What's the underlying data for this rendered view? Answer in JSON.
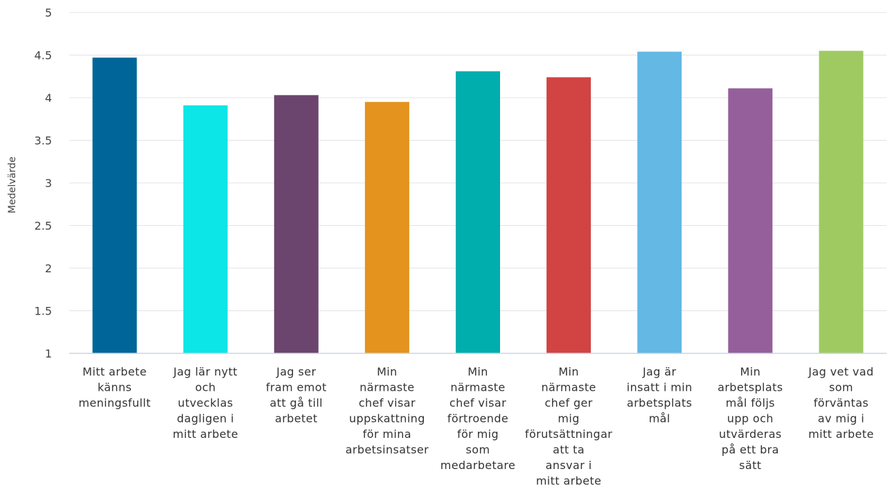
{
  "chart_data": {
    "type": "bar",
    "ylabel": "Medelvärde",
    "xlabel": "",
    "ylim": [
      1,
      5
    ],
    "yticks": [
      "1",
      "1.5",
      "2",
      "2.5",
      "3",
      "3.5",
      "4",
      "4.5",
      "5"
    ],
    "grid": true,
    "categories": [
      [
        "Mitt arbete",
        "känns",
        "meningsfullt"
      ],
      [
        "Jag lär nytt",
        "och",
        "utvecklas",
        "dagligen i",
        "mitt arbete"
      ],
      [
        "Jag ser",
        "fram emot",
        "att gå till",
        "arbetet"
      ],
      [
        "Min",
        "närmaste",
        "chef visar",
        "uppskattning",
        "för mina",
        "arbetsinsatser"
      ],
      [
        "Min",
        "närmaste",
        "chef visar",
        "förtroende",
        "för mig",
        "som",
        "medarbetare"
      ],
      [
        "Min",
        "närmaste",
        "chef ger",
        "mig",
        "förutsättningar",
        "att ta",
        "ansvar i",
        "mitt arbete"
      ],
      [
        "Jag är",
        "insatt i min",
        "arbetsplats",
        "mål"
      ],
      [
        "Min",
        "arbetsplats",
        "mål följs",
        "upp och",
        "utvärderas",
        "på ett bra",
        "sätt"
      ],
      [
        "Jag vet vad",
        "som",
        "förväntas",
        "av mig i",
        "mitt arbete"
      ]
    ],
    "values": [
      4.47,
      3.91,
      4.03,
      3.95,
      4.31,
      4.24,
      4.54,
      4.11,
      4.55
    ],
    "colors": [
      "#006699",
      "#0ce6e6",
      "#6b456e",
      "#e3931e",
      "#00aeae",
      "#d24343",
      "#63b8e4",
      "#955f9c",
      "#9fca62"
    ]
  }
}
